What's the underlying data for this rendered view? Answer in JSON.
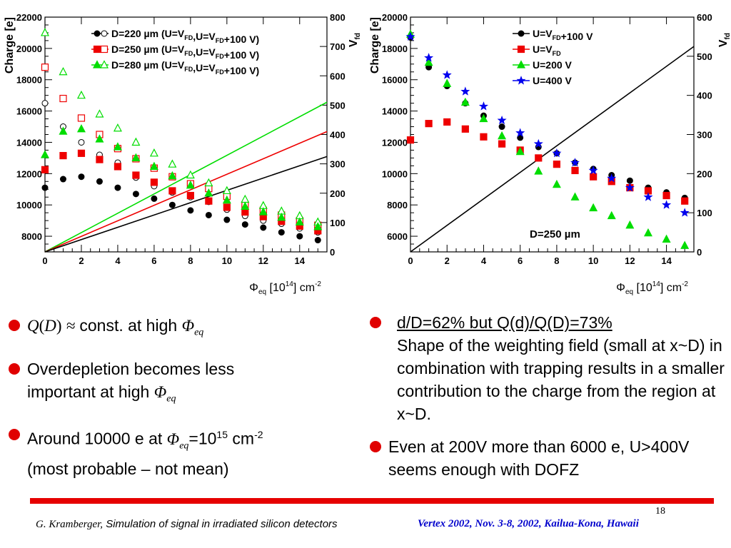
{
  "chart_data": [
    {
      "type": "scatter",
      "ylabel": "Charge [e]",
      "y2label": "V",
      "y2label_sub": "fd",
      "xlabel": "Φ",
      "xlabel_sub": "eq",
      "xlabel_rest": "[10",
      "xlabel_exp": "14",
      "xlabel_tail": "] cm",
      "xlabel_tail_exp": "-2",
      "xlim": [
        0,
        15.5
      ],
      "ylim": [
        7000,
        22000
      ],
      "y2lim": [
        0,
        800
      ],
      "xticks": [
        "0",
        "2",
        "4",
        "6",
        "8",
        "10",
        "12",
        "14"
      ],
      "yticks": [
        "8000",
        "10000",
        "12000",
        "14000",
        "16000",
        "18000",
        "20000",
        "22000"
      ],
      "y2ticks": [
        "0",
        "100",
        "200",
        "300",
        "400",
        "500",
        "600",
        "700",
        "800"
      ],
      "x": [
        0,
        1,
        2,
        3,
        4,
        5,
        6,
        7,
        8,
        9,
        10,
        11,
        12,
        13,
        14,
        15
      ],
      "series": [
        {
          "name": "D=220  µm (U=V_FD,U=V_FD+100 V)",
          "color": "#000000",
          "marker_filled": "circle",
          "marker_open": "circle",
          "values_filled": [
            11100,
            11650,
            11800,
            11500,
            11100,
            10700,
            10400,
            10000,
            9650,
            9350,
            9050,
            8750,
            8550,
            8250,
            8000,
            7750
          ],
          "values_open": [
            16500,
            15000,
            14000,
            13200,
            12700,
            11750,
            11200,
            10800,
            10500,
            10200,
            9700,
            9300,
            9000,
            8800,
            8500,
            8250
          ]
        },
        {
          "name": "D=250  µm (U=V_FD,U=V_FD+100 V)",
          "color": "#ee0000",
          "marker_filled": "square",
          "marker_open": "square",
          "values_filled": [
            12250,
            13150,
            13300,
            12900,
            12450,
            11900,
            11450,
            10900,
            10600,
            10250,
            9850,
            9550,
            9250,
            8950,
            8650,
            8350
          ],
          "values_open": [
            18800,
            16800,
            15550,
            14500,
            13600,
            12950,
            12350,
            11800,
            11350,
            11050,
            10550,
            10000,
            9650,
            9350,
            9000,
            8700
          ]
        },
        {
          "name": "D=280  µm (U=V_FD,U=V_FD+100 V)",
          "color": "#00dd00",
          "marker_filled": "triangle",
          "marker_open": "triangle",
          "values_filled": [
            13200,
            14700,
            14850,
            14200,
            13700,
            13000,
            12450,
            11850,
            11250,
            10750,
            10300,
            9900,
            9550,
            9200,
            8900,
            8600
          ],
          "values_open": [
            21000,
            18500,
            17000,
            15800,
            14900,
            14000,
            13300,
            12600,
            11900,
            11400,
            10900,
            10350,
            9950,
            9600,
            9300,
            8900
          ]
        }
      ],
      "lines_vfd": [
        {
          "color": "#00dd00",
          "vfd": [
            0,
            510
          ]
        },
        {
          "color": "#ee0000",
          "vfd": [
            0,
            410
          ]
        },
        {
          "color": "#000000",
          "vfd": [
            0,
            325
          ]
        }
      ],
      "legend_placement": "top-right"
    },
    {
      "type": "scatter",
      "ylabel": "Charge [e]",
      "y2label": "V",
      "y2label_sub": "fd",
      "xlabel": "Φ",
      "xlabel_sub": "eq",
      "xlabel_rest": "[10",
      "xlabel_exp": "14",
      "xlabel_tail": "] cm",
      "xlabel_tail_exp": "-2",
      "xlim": [
        0,
        15.5
      ],
      "ylim": [
        5000,
        20000
      ],
      "y2lim": [
        0,
        600
      ],
      "xticks": [
        "0",
        "2",
        "4",
        "6",
        "8",
        "10",
        "12",
        "14"
      ],
      "yticks": [
        "6000",
        "8000",
        "10000",
        "12000",
        "14000",
        "16000",
        "18000",
        "20000"
      ],
      "y2ticks": [
        "0",
        "100",
        "200",
        "300",
        "400",
        "500",
        "600"
      ],
      "x": [
        0,
        1,
        2,
        3,
        4,
        5,
        6,
        7,
        8,
        9,
        10,
        11,
        12,
        13,
        14,
        15
      ],
      "series": [
        {
          "name": "U=V_FD+100 V",
          "color": "#000000",
          "marker": "circle",
          "values": [
            18700,
            16800,
            15600,
            14500,
            13700,
            13000,
            12300,
            11700,
            11300,
            10700,
            10300,
            9900,
            9550,
            9100,
            8800,
            8450
          ]
        },
        {
          "name": "U=V_FD",
          "color": "#ee0000",
          "marker": "square",
          "values": [
            12150,
            13200,
            13300,
            12850,
            12350,
            11900,
            11500,
            11000,
            10600,
            10200,
            9800,
            9500,
            9100,
            8900,
            8600,
            8250
          ]
        },
        {
          "name": "U=200 V",
          "color": "#00dd00",
          "marker": "triangle",
          "values": [
            18900,
            17100,
            15750,
            14550,
            13500,
            12400,
            11400,
            10150,
            9300,
            8500,
            7800,
            7300,
            6700,
            6200,
            5800,
            5400
          ]
        },
        {
          "name": "U=400 V",
          "color": "#0000ee",
          "marker": "star",
          "values": [
            18750,
            17400,
            16300,
            15250,
            14300,
            13400,
            12600,
            11900,
            11300,
            10700,
            10200,
            9700,
            9100,
            8500,
            8000,
            7500
          ]
        }
      ],
      "lines_vfd": [
        {
          "color": "#000000",
          "vfd": [
            0,
            525
          ]
        }
      ],
      "annotation_pre": "D=250 ",
      "annotation_unit": "µm",
      "legend_placement": "top-right"
    }
  ],
  "left_bullets": {
    "b1_rest": "const. at high",
    "b2_text": "Overdepletion becomes less important at high",
    "b3_pre": "Around 10000 e at",
    "b3_eq": "=10",
    "b3_exp": "15",
    "b3_unit": " cm",
    "b3_unit_exp": "-2",
    "b3_line2": "(most probable – not mean)"
  },
  "right_bullets": {
    "r1_head": "d/D=62%  but Q(d)/Q(D)=73%",
    "r1_body": "Shape of the weighting field (small at x~D) in combination with trapping results in a smaller contribution to the charge from the region at x~D.",
    "r2_text": "Even at 200V more than 6000 e, U>400V seems enough with DOFZ"
  },
  "footer": {
    "author": "G. Kramberger,",
    "title": "Simulation of signal in irradiated silicon detectors",
    "conference": "Vertex 2002, Nov.  3-8, 2002, Kailua-Kona, Hawaii",
    "page": "18"
  },
  "colors": {
    "accent_red": "#e60000",
    "footer_blue": "#0000cc"
  }
}
